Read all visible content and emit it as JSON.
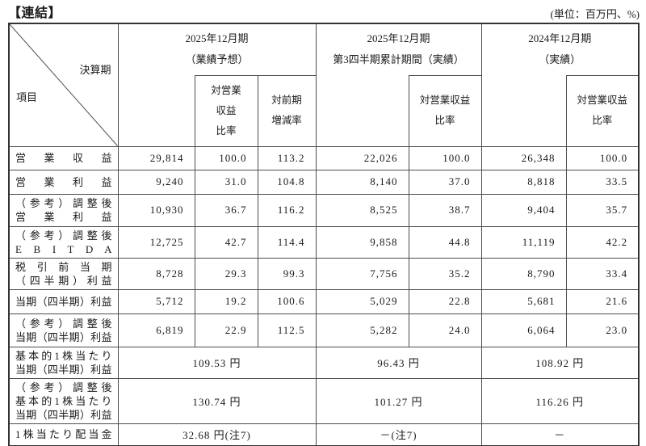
{
  "title": "【連結】",
  "unit_note": "(単位：百万円、%)",
  "header": {
    "corner_top": "決算期",
    "corner_bottom": "項目",
    "groups": [
      {
        "lines": [
          "2025年12月期",
          "（業績予想）"
        ]
      },
      {
        "lines": [
          "2025年12月期",
          "第3四半期累計期間（実績）"
        ]
      },
      {
        "lines": [
          "2024年12月期",
          "（実績）"
        ]
      }
    ],
    "subs": [
      {
        "lines": [
          "対営業",
          "収益",
          "比率"
        ]
      },
      {
        "lines": [
          "対前期",
          "増減率"
        ]
      },
      {
        "lines": [
          "対営業収益",
          "比率"
        ]
      },
      {
        "lines": [
          "対営業収益",
          "比率"
        ]
      }
    ]
  },
  "rows": [
    {
      "label": [
        "営業収益"
      ],
      "merged": false,
      "values": [
        "29,814",
        "100.0",
        "113.2",
        "22,026",
        "100.0",
        "26,348",
        "100.0"
      ]
    },
    {
      "label": [
        "営業利益"
      ],
      "merged": false,
      "values": [
        "9,240",
        "31.0",
        "104.8",
        "8,140",
        "37.0",
        "8,818",
        "33.5"
      ]
    },
    {
      "label": [
        "（参考）調整後",
        "営業利益"
      ],
      "merged": false,
      "values": [
        "10,930",
        "36.7",
        "116.2",
        "8,525",
        "38.7",
        "9,404",
        "35.7"
      ]
    },
    {
      "label": [
        "（参考）調整後",
        "E B I T D A"
      ],
      "merged": false,
      "values": [
        "12,725",
        "42.7",
        "114.4",
        "9,858",
        "44.8",
        "11,119",
        "42.2"
      ]
    },
    {
      "label": [
        "税引前当期",
        "（四半期）利益"
      ],
      "merged": false,
      "values": [
        "8,728",
        "29.3",
        "99.3",
        "7,756",
        "35.2",
        "8,790",
        "33.4"
      ]
    },
    {
      "label": [
        "当期（四半期）利益"
      ],
      "merged": false,
      "values": [
        "5,712",
        "19.2",
        "100.6",
        "5,029",
        "22.8",
        "5,681",
        "21.6"
      ]
    },
    {
      "label": [
        "（参考）調整後",
        "当期（四半期）利益"
      ],
      "merged": false,
      "values": [
        "6,819",
        "22.9",
        "112.5",
        "5,282",
        "24.0",
        "6,064",
        "23.0"
      ]
    },
    {
      "label": [
        "基本的1株当たり",
        "当期（四半期）利益"
      ],
      "merged": true,
      "values": [
        "109.53 円",
        "96.43 円",
        "108.92 円"
      ]
    },
    {
      "label": [
        "（参考）調整後",
        "基本的1株当たり",
        "当期（四半期）利益"
      ],
      "merged": true,
      "values": [
        "130.74 円",
        "101.27 円",
        "116.26 円"
      ]
    },
    {
      "label": [
        "1株当たり配当金"
      ],
      "merged": true,
      "values": [
        "32.68 円(注7)",
        "－(注7)",
        "－"
      ]
    }
  ]
}
